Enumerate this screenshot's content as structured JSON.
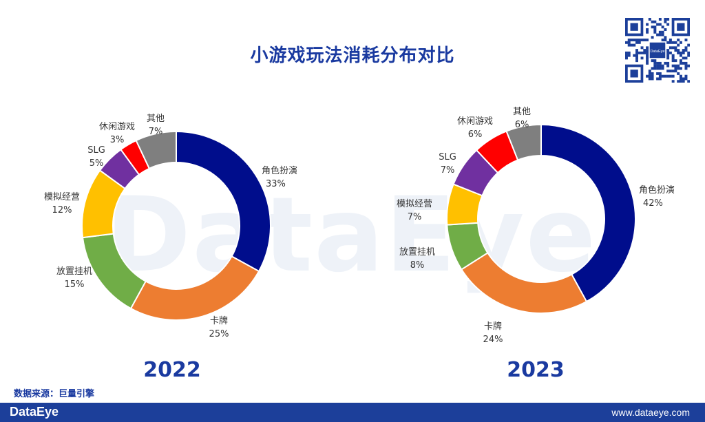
{
  "title": "小游戏玩法消耗分布对比",
  "source": "数据来源：巨量引擎",
  "footer": {
    "brand": "DataEye",
    "url": "www.dataeye.com"
  },
  "watermark": "DataEye",
  "qr_badge": "DataEye",
  "chart_data": [
    {
      "type": "pie",
      "year": "2022",
      "categories": [
        "角色扮演",
        "卡牌",
        "放置挂机",
        "模拟经营",
        "SLG",
        "休闲游戏",
        "其他"
      ],
      "values": [
        33,
        25,
        15,
        12,
        5,
        3,
        7
      ],
      "labels": [
        "33%",
        "25%",
        "15%",
        "12%",
        "5%",
        "3%",
        "7%"
      ],
      "colors": [
        "#000d8c",
        "#ed7d31",
        "#70ad47",
        "#ffc000",
        "#7030a0",
        "#ff0000",
        "#7f7f7f"
      ]
    },
    {
      "type": "pie",
      "year": "2023",
      "categories": [
        "角色扮演",
        "卡牌",
        "放置挂机",
        "模拟经营",
        "SLG",
        "休闲游戏",
        "其他"
      ],
      "values": [
        42,
        24,
        8,
        7,
        7,
        6,
        6
      ],
      "labels": [
        "42%",
        "24%",
        "8%",
        "7%",
        "7%",
        "6%",
        "6%"
      ],
      "colors": [
        "#000d8c",
        "#ed7d31",
        "#70ad47",
        "#ffc000",
        "#7030a0",
        "#ff0000",
        "#7f7f7f"
      ]
    }
  ]
}
